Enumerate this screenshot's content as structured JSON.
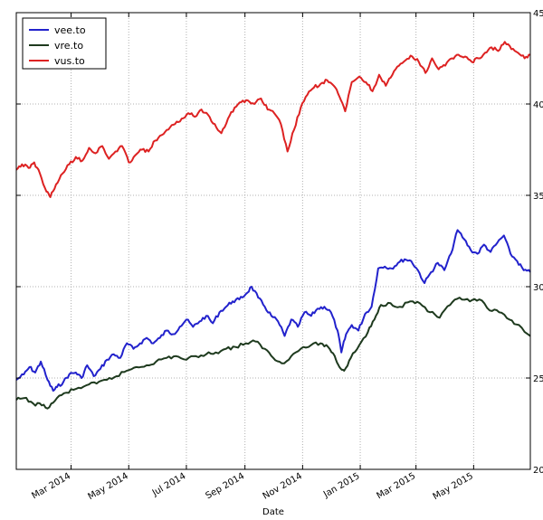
{
  "chart_data": {
    "type": "line",
    "title": "",
    "xlabel": "Date",
    "ylabel": "",
    "ylim": [
      20,
      45
    ],
    "xlim": [
      "2014-01-02",
      "2015-06-30"
    ],
    "yticks": [
      20,
      25,
      30,
      35,
      40,
      45
    ],
    "xticks": [
      {
        "date": "2014-03-01",
        "label": "Mar 2014"
      },
      {
        "date": "2014-05-01",
        "label": "May 2014"
      },
      {
        "date": "2014-07-01",
        "label": "Jul 2014"
      },
      {
        "date": "2014-09-01",
        "label": "Sep 2014"
      },
      {
        "date": "2014-11-01",
        "label": "Nov 2014"
      },
      {
        "date": "2015-01-01",
        "label": "Jan 2015"
      },
      {
        "date": "2015-03-01",
        "label": "Mar 2015"
      },
      {
        "date": "2015-05-01",
        "label": "May 2015"
      }
    ],
    "grid": true,
    "legend_position": "top-left",
    "series": [
      {
        "name": "vee.to",
        "color": "#2222cc",
        "points": [
          [
            "2014-01-02",
            24.9
          ],
          [
            "2014-01-10",
            25.2
          ],
          [
            "2014-01-16",
            25.6
          ],
          [
            "2014-01-22",
            25.3
          ],
          [
            "2014-01-28",
            25.9
          ],
          [
            "2014-02-04",
            24.9
          ],
          [
            "2014-02-10",
            24.3
          ],
          [
            "2014-02-14",
            24.5
          ],
          [
            "2014-02-21",
            24.8
          ],
          [
            "2014-02-27",
            25.2
          ],
          [
            "2014-03-06",
            25.3
          ],
          [
            "2014-03-12",
            25.0
          ],
          [
            "2014-03-18",
            25.7
          ],
          [
            "2014-03-25",
            25.1
          ],
          [
            "2014-04-01",
            25.5
          ],
          [
            "2014-04-08",
            26.0
          ],
          [
            "2014-04-15",
            26.3
          ],
          [
            "2014-04-22",
            26.1
          ],
          [
            "2014-04-29",
            26.9
          ],
          [
            "2014-05-06",
            26.6
          ],
          [
            "2014-05-13",
            26.9
          ],
          [
            "2014-05-20",
            27.2
          ],
          [
            "2014-05-27",
            26.9
          ],
          [
            "2014-06-03",
            27.2
          ],
          [
            "2014-06-10",
            27.6
          ],
          [
            "2014-06-17",
            27.4
          ],
          [
            "2014-06-24",
            27.8
          ],
          [
            "2014-07-01",
            28.2
          ],
          [
            "2014-07-08",
            27.8
          ],
          [
            "2014-07-15",
            28.1
          ],
          [
            "2014-07-22",
            28.4
          ],
          [
            "2014-07-29",
            28.0
          ],
          [
            "2014-08-05",
            28.6
          ],
          [
            "2014-08-12",
            28.9
          ],
          [
            "2014-08-19",
            29.2
          ],
          [
            "2014-08-26",
            29.3
          ],
          [
            "2014-09-02",
            29.6
          ],
          [
            "2014-09-08",
            30.0
          ],
          [
            "2014-09-15",
            29.4
          ],
          [
            "2014-09-22",
            28.9
          ],
          [
            "2014-09-29",
            28.4
          ],
          [
            "2014-10-06",
            28.1
          ],
          [
            "2014-10-13",
            27.3
          ],
          [
            "2014-10-20",
            28.2
          ],
          [
            "2014-10-27",
            27.8
          ],
          [
            "2014-11-03",
            28.6
          ],
          [
            "2014-11-10",
            28.4
          ],
          [
            "2014-11-17",
            28.8
          ],
          [
            "2014-11-24",
            28.9
          ],
          [
            "2014-12-01",
            28.6
          ],
          [
            "2014-12-08",
            27.6
          ],
          [
            "2014-12-12",
            26.4
          ],
          [
            "2014-12-17",
            27.4
          ],
          [
            "2014-12-23",
            27.9
          ],
          [
            "2014-12-30",
            27.6
          ],
          [
            "2015-01-06",
            28.5
          ],
          [
            "2015-01-13",
            28.9
          ],
          [
            "2015-01-20",
            31.0
          ],
          [
            "2015-01-27",
            31.1
          ],
          [
            "2015-02-03",
            31.0
          ],
          [
            "2015-02-10",
            31.3
          ],
          [
            "2015-02-17",
            31.5
          ],
          [
            "2015-02-24",
            31.4
          ],
          [
            "2015-03-03",
            30.9
          ],
          [
            "2015-03-10",
            30.2
          ],
          [
            "2015-03-17",
            30.8
          ],
          [
            "2015-03-24",
            31.3
          ],
          [
            "2015-03-31",
            30.9
          ],
          [
            "2015-04-07",
            31.8
          ],
          [
            "2015-04-14",
            33.1
          ],
          [
            "2015-04-21",
            32.6
          ],
          [
            "2015-04-28",
            32.0
          ],
          [
            "2015-05-05",
            31.8
          ],
          [
            "2015-05-12",
            32.3
          ],
          [
            "2015-05-19",
            31.9
          ],
          [
            "2015-05-26",
            32.4
          ],
          [
            "2015-06-02",
            32.8
          ],
          [
            "2015-06-09",
            31.8
          ],
          [
            "2015-06-16",
            31.4
          ],
          [
            "2015-06-23",
            30.9
          ],
          [
            "2015-06-30",
            30.8
          ]
        ]
      },
      {
        "name": "vre.to",
        "color": "#1e3a1e",
        "points": [
          [
            "2014-01-02",
            23.8
          ],
          [
            "2014-01-10",
            23.9
          ],
          [
            "2014-01-20",
            23.6
          ],
          [
            "2014-01-29",
            23.5
          ],
          [
            "2014-02-06",
            23.4
          ],
          [
            "2014-02-14",
            23.9
          ],
          [
            "2014-02-24",
            24.2
          ],
          [
            "2014-03-06",
            24.4
          ],
          [
            "2014-03-17",
            24.6
          ],
          [
            "2014-03-28",
            24.7
          ],
          [
            "2014-04-08",
            24.9
          ],
          [
            "2014-04-18",
            25.1
          ],
          [
            "2014-04-29",
            25.4
          ],
          [
            "2014-05-09",
            25.6
          ],
          [
            "2014-05-20",
            25.7
          ],
          [
            "2014-05-30",
            25.9
          ],
          [
            "2014-06-10",
            26.1
          ],
          [
            "2014-06-20",
            26.2
          ],
          [
            "2014-07-01",
            26.0
          ],
          [
            "2014-07-11",
            26.2
          ],
          [
            "2014-07-22",
            26.3
          ],
          [
            "2014-08-01",
            26.4
          ],
          [
            "2014-08-12",
            26.6
          ],
          [
            "2014-08-22",
            26.7
          ],
          [
            "2014-09-02",
            26.9
          ],
          [
            "2014-09-12",
            27.0
          ],
          [
            "2014-09-22",
            26.6
          ],
          [
            "2014-10-01",
            26.1
          ],
          [
            "2014-10-10",
            25.8
          ],
          [
            "2014-10-20",
            26.2
          ],
          [
            "2014-10-30",
            26.6
          ],
          [
            "2014-11-10",
            26.8
          ],
          [
            "2014-11-20",
            26.9
          ],
          [
            "2014-11-28",
            26.7
          ],
          [
            "2014-12-05",
            26.2
          ],
          [
            "2014-12-10",
            25.6
          ],
          [
            "2014-12-15",
            25.4
          ],
          [
            "2014-12-22",
            26.1
          ],
          [
            "2014-12-31",
            26.8
          ],
          [
            "2015-01-09",
            27.5
          ],
          [
            "2015-01-16",
            28.2
          ],
          [
            "2015-01-23",
            29.0
          ],
          [
            "2015-02-02",
            29.1
          ],
          [
            "2015-02-12",
            28.9
          ],
          [
            "2015-02-23",
            29.2
          ],
          [
            "2015-03-05",
            29.1
          ],
          [
            "2015-03-16",
            28.6
          ],
          [
            "2015-03-26",
            28.3
          ],
          [
            "2015-04-06",
            29.0
          ],
          [
            "2015-04-16",
            29.4
          ],
          [
            "2015-04-27",
            29.2
          ],
          [
            "2015-05-07",
            29.3
          ],
          [
            "2015-05-18",
            28.7
          ],
          [
            "2015-05-28",
            28.6
          ],
          [
            "2015-06-08",
            28.2
          ],
          [
            "2015-06-18",
            27.9
          ],
          [
            "2015-06-30",
            27.3
          ]
        ]
      },
      {
        "name": "vus.to",
        "color": "#dd2222",
        "points": [
          [
            "2014-01-02",
            36.4
          ],
          [
            "2014-01-08",
            36.7
          ],
          [
            "2014-01-15",
            36.5
          ],
          [
            "2014-01-21",
            36.8
          ],
          [
            "2014-01-27",
            36.2
          ],
          [
            "2014-02-03",
            35.2
          ],
          [
            "2014-02-07",
            34.9
          ],
          [
            "2014-02-13",
            35.6
          ],
          [
            "2014-02-20",
            36.2
          ],
          [
            "2014-02-27",
            36.7
          ],
          [
            "2014-03-06",
            37.1
          ],
          [
            "2014-03-13",
            36.9
          ],
          [
            "2014-03-20",
            37.6
          ],
          [
            "2014-03-27",
            37.3
          ],
          [
            "2014-04-03",
            37.7
          ],
          [
            "2014-04-10",
            37.0
          ],
          [
            "2014-04-17",
            37.4
          ],
          [
            "2014-04-24",
            37.7
          ],
          [
            "2014-05-01",
            36.8
          ],
          [
            "2014-05-08",
            37.2
          ],
          [
            "2014-05-15",
            37.5
          ],
          [
            "2014-05-22",
            37.4
          ],
          [
            "2014-05-29",
            38.0
          ],
          [
            "2014-06-05",
            38.3
          ],
          [
            "2014-06-12",
            38.6
          ],
          [
            "2014-06-19",
            38.9
          ],
          [
            "2014-06-26",
            39.2
          ],
          [
            "2014-07-03",
            39.5
          ],
          [
            "2014-07-10",
            39.3
          ],
          [
            "2014-07-17",
            39.7
          ],
          [
            "2014-07-24",
            39.4
          ],
          [
            "2014-07-31",
            38.9
          ],
          [
            "2014-08-07",
            38.4
          ],
          [
            "2014-08-14",
            39.2
          ],
          [
            "2014-08-21",
            39.8
          ],
          [
            "2014-08-28",
            40.1
          ],
          [
            "2014-09-04",
            40.2
          ],
          [
            "2014-09-11",
            40.0
          ],
          [
            "2014-09-18",
            40.3
          ],
          [
            "2014-09-25",
            39.7
          ],
          [
            "2014-10-02",
            39.5
          ],
          [
            "2014-10-09",
            38.9
          ],
          [
            "2014-10-16",
            37.4
          ],
          [
            "2014-10-23",
            38.6
          ],
          [
            "2014-10-30",
            39.8
          ],
          [
            "2014-11-06",
            40.5
          ],
          [
            "2014-11-13",
            40.9
          ],
          [
            "2014-11-20",
            41.1
          ],
          [
            "2014-11-27",
            41.3
          ],
          [
            "2014-12-04",
            41.0
          ],
          [
            "2014-12-10",
            40.4
          ],
          [
            "2014-12-16",
            39.6
          ],
          [
            "2014-12-23",
            41.2
          ],
          [
            "2014-12-31",
            41.5
          ],
          [
            "2015-01-07",
            41.2
          ],
          [
            "2015-01-14",
            40.7
          ],
          [
            "2015-01-21",
            41.6
          ],
          [
            "2015-01-28",
            41.0
          ],
          [
            "2015-02-04",
            41.6
          ],
          [
            "2015-02-11",
            42.1
          ],
          [
            "2015-02-18",
            42.4
          ],
          [
            "2015-02-25",
            42.6
          ],
          [
            "2015-03-04",
            42.3
          ],
          [
            "2015-03-11",
            41.7
          ],
          [
            "2015-03-18",
            42.5
          ],
          [
            "2015-03-25",
            41.9
          ],
          [
            "2015-04-01",
            42.1
          ],
          [
            "2015-04-08",
            42.5
          ],
          [
            "2015-04-15",
            42.7
          ],
          [
            "2015-04-22",
            42.6
          ],
          [
            "2015-04-29",
            42.3
          ],
          [
            "2015-05-06",
            42.5
          ],
          [
            "2015-05-13",
            42.8
          ],
          [
            "2015-05-20",
            43.1
          ],
          [
            "2015-05-27",
            42.9
          ],
          [
            "2015-06-03",
            43.4
          ],
          [
            "2015-06-10",
            43.0
          ],
          [
            "2015-06-17",
            42.8
          ],
          [
            "2015-06-24",
            42.5
          ],
          [
            "2015-06-30",
            42.7
          ]
        ]
      }
    ]
  }
}
